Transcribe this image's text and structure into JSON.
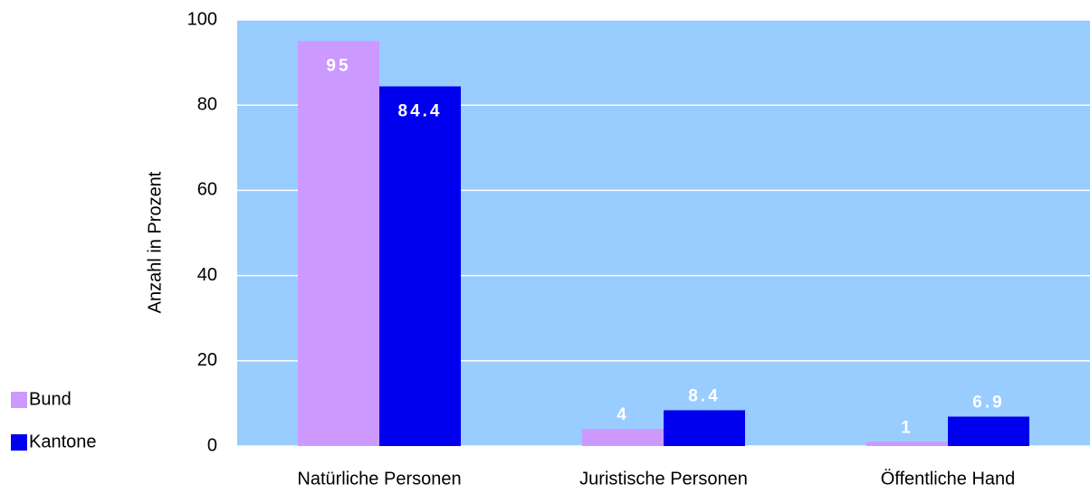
{
  "chart_data": {
    "type": "bar",
    "y_label": "Anzahl in Prozent",
    "categories": [
      "Natürliche Personen",
      "Juristische Personen",
      "Öffentliche Hand"
    ],
    "series": [
      {
        "name": "Bund",
        "color": "#cc99ff",
        "values": [
          95,
          4,
          1
        ]
      },
      {
        "name": "Kantone",
        "color": "#0000ee",
        "values": [
          84.4,
          8.4,
          6.9
        ]
      }
    ],
    "ylim": [
      0,
      100
    ],
    "yticks": [
      0,
      20,
      40,
      60,
      80,
      100
    ],
    "grid": true,
    "plot_background": "#99ccff",
    "legend": "bottom-left"
  }
}
